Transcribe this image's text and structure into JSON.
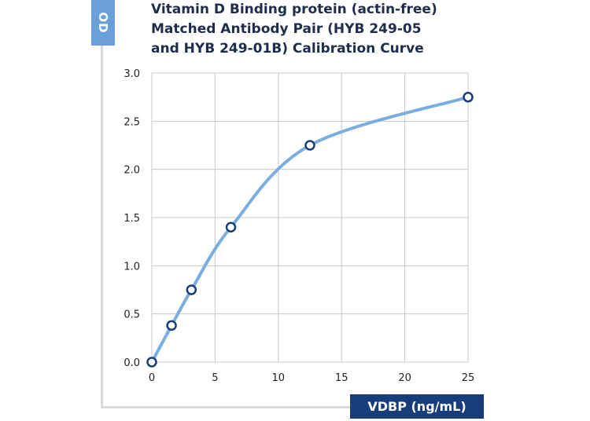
{
  "chart_data": {
    "type": "line",
    "title_lines": [
      "Vitamin D Binding protein (actin-free)",
      "Matched Antibody Pair (HYB 249-05",
      "and HYB 249-01B) Calibration Curve"
    ],
    "xlabel": "VDBP (ng/mL)",
    "ylabel": "OD",
    "xlim": [
      0,
      25
    ],
    "ylim": [
      0,
      3.0
    ],
    "x_ticks": [
      "0",
      "5",
      "10",
      "15",
      "20",
      "25"
    ],
    "y_ticks": [
      "0.0",
      "0.5",
      "1.0",
      "1.5",
      "2.0",
      "2.5",
      "3.0"
    ],
    "grid": true,
    "series": [
      {
        "x": [
          0,
          1.56,
          3.13,
          6.25,
          12.5,
          25
        ],
        "y": [
          0.0,
          0.38,
          0.75,
          1.4,
          2.25,
          2.75
        ]
      }
    ],
    "colors": {
      "curve": "#7aaee0",
      "marker_stroke": "#173e7a",
      "badge_light": "#6a9fd8",
      "badge_dark": "#173e7a",
      "grid": "#c8c8c8",
      "title": "#1f2d4d"
    }
  }
}
